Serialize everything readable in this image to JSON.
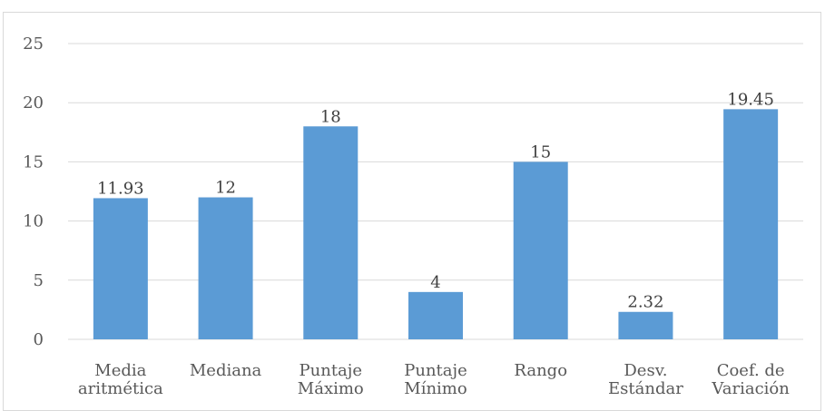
{
  "chart_data": {
    "type": "bar",
    "categories": [
      [
        "Media",
        "aritmética"
      ],
      [
        "Mediana"
      ],
      [
        "Puntaje",
        "Máximo"
      ],
      [
        "Puntaje",
        "Mínimo"
      ],
      [
        "Rango"
      ],
      [
        "Desv.",
        "Estándar"
      ],
      [
        "Coef. de",
        "Variación"
      ]
    ],
    "values": [
      11.93,
      12,
      18,
      4,
      15,
      2.32,
      19.45
    ],
    "data_labels": [
      "11.93",
      "12",
      "18",
      "4",
      "15",
      "2.32",
      "19.45"
    ],
    "ylim": [
      0,
      25
    ],
    "yticks": [
      0,
      5,
      10,
      15,
      20,
      25
    ],
    "grid": true,
    "bar_color": "#5b9bd5",
    "gridline_color": "#d9d9d9"
  }
}
